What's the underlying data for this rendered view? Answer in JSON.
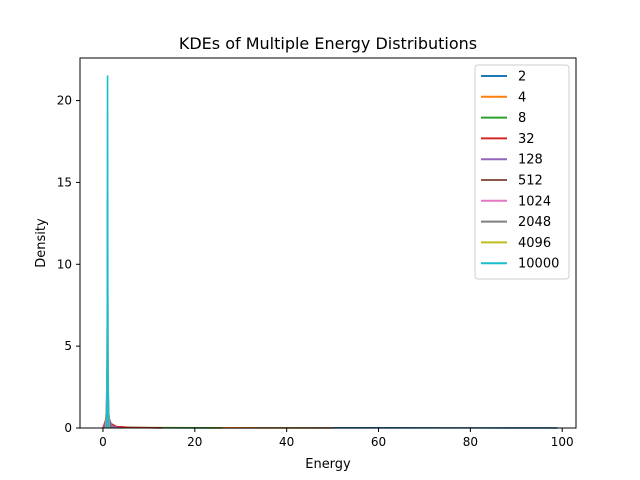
{
  "chart_data": {
    "type": "line",
    "title": "KDEs of Multiple Energy Distributions",
    "xlabel": "Energy",
    "ylabel": "Density",
    "xlim": [
      -5,
      103
    ],
    "ylim": [
      0,
      22.6
    ],
    "xticks": [
      0,
      20,
      40,
      60,
      80,
      100
    ],
    "yticks": [
      0,
      5,
      10,
      15,
      20
    ],
    "grid": false,
    "legend_position": "top-right",
    "series": [
      {
        "name": "2",
        "color": "#1f77b4",
        "x": [
          0,
          0.3,
          0.6,
          1,
          2,
          5,
          10,
          20,
          30,
          50,
          60,
          80,
          99
        ],
        "y": [
          0,
          0.05,
          0.1,
          0.06,
          0.03,
          0.02,
          0.015,
          0.012,
          0.01,
          0.01,
          0.01,
          0.008,
          0.005
        ]
      },
      {
        "name": "4",
        "color": "#ff7f0e",
        "x": [
          0,
          0.5,
          1,
          2,
          5,
          10,
          20,
          30,
          50
        ],
        "y": [
          0,
          0.12,
          0.2,
          0.08,
          0.03,
          0.02,
          0.015,
          0.01,
          0
        ]
      },
      {
        "name": "8",
        "color": "#2ca02c",
        "x": [
          0,
          0.5,
          0.9,
          1.2,
          2,
          5,
          10,
          20,
          26
        ],
        "y": [
          0,
          0.2,
          0.45,
          0.3,
          0.1,
          0.04,
          0.02,
          0.01,
          0
        ]
      },
      {
        "name": "32",
        "color": "#d62728",
        "x": [
          0,
          0.5,
          0.9,
          1.1,
          1.5,
          3,
          6,
          13
        ],
        "y": [
          0,
          0.4,
          0.9,
          0.7,
          0.3,
          0.08,
          0.03,
          0
        ]
      },
      {
        "name": "128",
        "color": "#9467bd",
        "x": [
          0.2,
          0.7,
          0.9,
          1,
          1.1,
          1.3,
          2,
          3.5
        ],
        "y": [
          0,
          0.6,
          1.6,
          1.9,
          1.5,
          0.6,
          0.1,
          0
        ]
      },
      {
        "name": "512",
        "color": "#8c564b",
        "x": [
          0.5,
          0.8,
          0.9,
          1,
          1.1,
          1.2,
          1.6
        ],
        "y": [
          0,
          1.2,
          3.2,
          4.0,
          3.0,
          1.0,
          0
        ]
      },
      {
        "name": "1024",
        "color": "#e377c2",
        "x": [
          0.6,
          0.85,
          0.95,
          1,
          1.05,
          1.15,
          1.4
        ],
        "y": [
          0,
          2.0,
          5.0,
          6.0,
          4.5,
          1.5,
          0
        ]
      },
      {
        "name": "2048",
        "color": "#7f7f7f",
        "x": [
          0.7,
          0.9,
          0.97,
          1,
          1.03,
          1.1,
          1.3
        ],
        "y": [
          0,
          3.5,
          10.5,
          14.0,
          10.0,
          3.0,
          0
        ]
      },
      {
        "name": "4096",
        "color": "#bcbd22",
        "x": [
          0.75,
          0.9,
          0.97,
          1,
          1.03,
          1.1,
          1.25
        ],
        "y": [
          0,
          3.0,
          8.5,
          11.0,
          8.0,
          2.5,
          0
        ]
      },
      {
        "name": "10000",
        "color": "#17becf",
        "x": [
          0.8,
          0.93,
          0.98,
          1,
          1.02,
          1.07,
          1.2
        ],
        "y": [
          0,
          4.0,
          17.0,
          21.5,
          16.5,
          4.0,
          0
        ]
      }
    ]
  }
}
